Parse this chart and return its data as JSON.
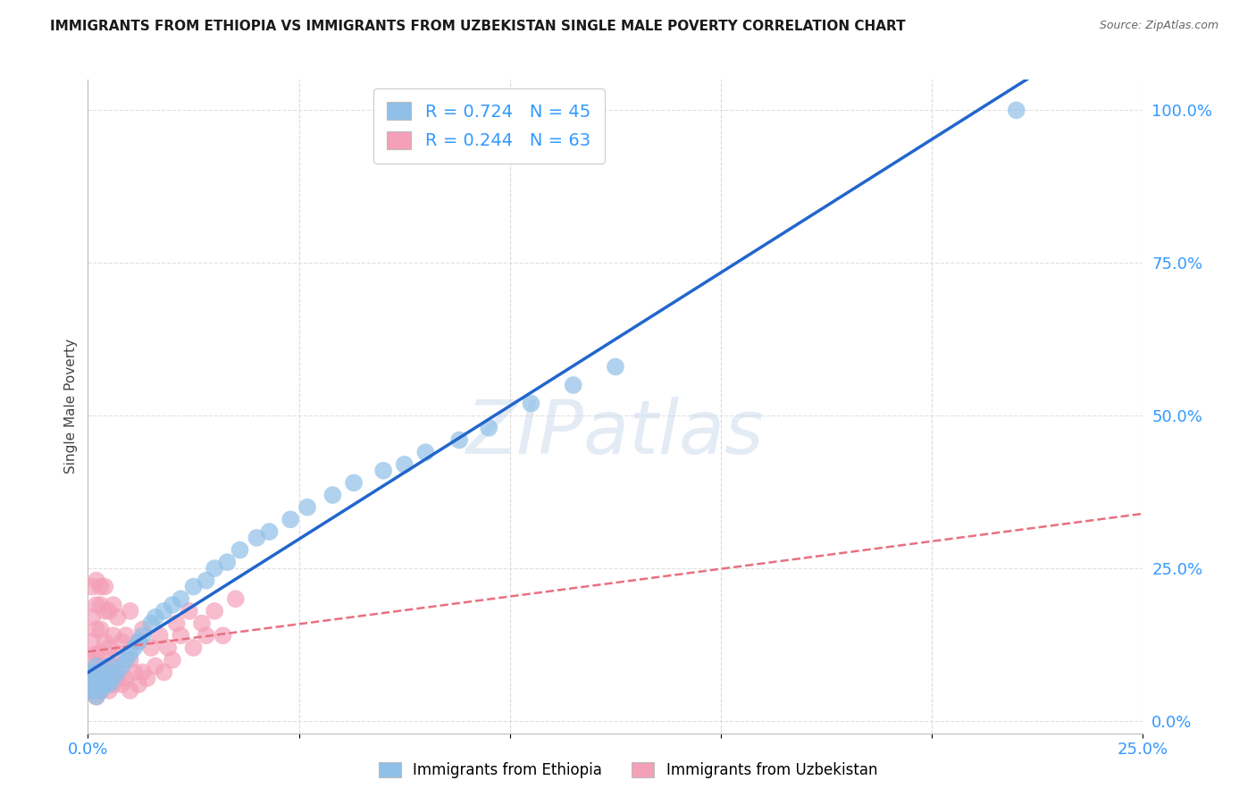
{
  "title": "IMMIGRANTS FROM ETHIOPIA VS IMMIGRANTS FROM UZBEKISTAN SINGLE MALE POVERTY CORRELATION CHART",
  "source": "Source: ZipAtlas.com",
  "ylabel": "Single Male Poverty",
  "xlim": [
    0.0,
    0.25
  ],
  "ylim": [
    -0.02,
    1.05
  ],
  "xtick_positions": [
    0.0,
    0.25
  ],
  "xtick_labels": [
    "0.0%",
    "25.0%"
  ],
  "ytick_positions": [
    0.0,
    0.25,
    0.5,
    0.75,
    1.0
  ],
  "ytick_labels": [
    "0.0%",
    "25.0%",
    "50.0%",
    "75.0%",
    "100.0%"
  ],
  "ethiopia_color": "#90C0E8",
  "uzbekistan_color": "#F4A0B8",
  "ethiopia_line_color": "#2266CC",
  "uzbekistan_line_color": "#E87080",
  "R_ethiopia": 0.724,
  "N_ethiopia": 45,
  "R_uzbekistan": 0.244,
  "N_uzbekistan": 63,
  "watermark": "ZIPatlas",
  "background_color": "#FFFFFF",
  "legend_label_ethiopia": "Immigrants from Ethiopia",
  "legend_label_uzbekistan": "Immigrants from Uzbekistan",
  "ethiopia_x": [
    0.001,
    0.001,
    0.001,
    0.002,
    0.002,
    0.002,
    0.003,
    0.003,
    0.004,
    0.004,
    0.005,
    0.005,
    0.006,
    0.007,
    0.008,
    0.009,
    0.01,
    0.011,
    0.012,
    0.013,
    0.015,
    0.016,
    0.018,
    0.02,
    0.022,
    0.025,
    0.028,
    0.03,
    0.033,
    0.036,
    0.04,
    0.043,
    0.048,
    0.052,
    0.058,
    0.063,
    0.07,
    0.075,
    0.08,
    0.088,
    0.095,
    0.105,
    0.115,
    0.125,
    0.22
  ],
  "ethiopia_y": [
    0.05,
    0.06,
    0.08,
    0.04,
    0.07,
    0.09,
    0.05,
    0.07,
    0.06,
    0.08,
    0.06,
    0.09,
    0.07,
    0.08,
    0.09,
    0.1,
    0.11,
    0.12,
    0.13,
    0.14,
    0.16,
    0.17,
    0.18,
    0.19,
    0.2,
    0.22,
    0.23,
    0.25,
    0.26,
    0.28,
    0.3,
    0.31,
    0.33,
    0.35,
    0.37,
    0.39,
    0.41,
    0.42,
    0.44,
    0.46,
    0.48,
    0.52,
    0.55,
    0.58,
    1.0
  ],
  "uzbekistan_x": [
    0.001,
    0.001,
    0.001,
    0.001,
    0.001,
    0.001,
    0.002,
    0.002,
    0.002,
    0.002,
    0.002,
    0.002,
    0.002,
    0.003,
    0.003,
    0.003,
    0.003,
    0.003,
    0.003,
    0.004,
    0.004,
    0.004,
    0.004,
    0.004,
    0.005,
    0.005,
    0.005,
    0.005,
    0.006,
    0.006,
    0.006,
    0.006,
    0.007,
    0.007,
    0.007,
    0.008,
    0.008,
    0.009,
    0.009,
    0.01,
    0.01,
    0.01,
    0.011,
    0.012,
    0.012,
    0.013,
    0.013,
    0.014,
    0.015,
    0.016,
    0.017,
    0.018,
    0.019,
    0.02,
    0.021,
    0.022,
    0.024,
    0.025,
    0.027,
    0.028,
    0.03,
    0.032,
    0.035
  ],
  "uzbekistan_y": [
    0.05,
    0.07,
    0.1,
    0.13,
    0.17,
    0.22,
    0.04,
    0.06,
    0.08,
    0.11,
    0.15,
    0.19,
    0.23,
    0.05,
    0.08,
    0.11,
    0.15,
    0.19,
    0.22,
    0.06,
    0.09,
    0.13,
    0.18,
    0.22,
    0.05,
    0.08,
    0.12,
    0.18,
    0.06,
    0.09,
    0.14,
    0.19,
    0.07,
    0.11,
    0.17,
    0.06,
    0.13,
    0.07,
    0.14,
    0.05,
    0.1,
    0.18,
    0.08,
    0.06,
    0.13,
    0.08,
    0.15,
    0.07,
    0.12,
    0.09,
    0.14,
    0.08,
    0.12,
    0.1,
    0.16,
    0.14,
    0.18,
    0.12,
    0.16,
    0.14,
    0.18,
    0.14,
    0.2
  ]
}
